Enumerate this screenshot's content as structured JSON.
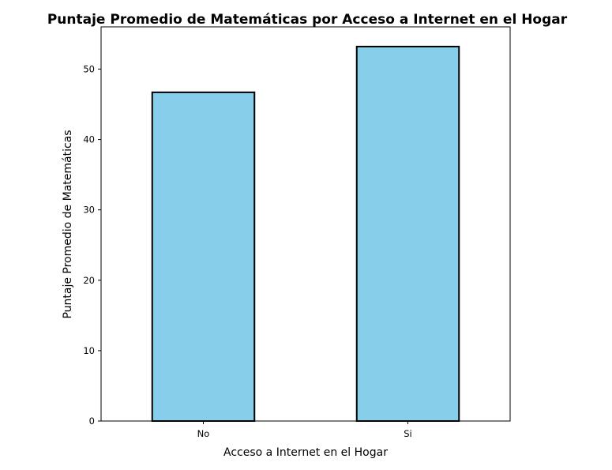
{
  "chart_data": {
    "type": "bar",
    "title": "Puntaje Promedio de Matemáticas por Acceso a Internet en el Hogar",
    "xlabel": "Acceso a Internet en el Hogar",
    "ylabel": "Puntaje Promedio de Matemáticas",
    "categories": [
      "No",
      "Si"
    ],
    "values": [
      46.7,
      53.2
    ],
    "ylim": [
      0,
      56
    ],
    "yticks": [
      0,
      10,
      20,
      30,
      40,
      50
    ],
    "grid": false,
    "legend": "none",
    "colors": {
      "bar_fill": "#87CEEB",
      "bar_edge": "#000000",
      "axes": "#000000"
    }
  }
}
